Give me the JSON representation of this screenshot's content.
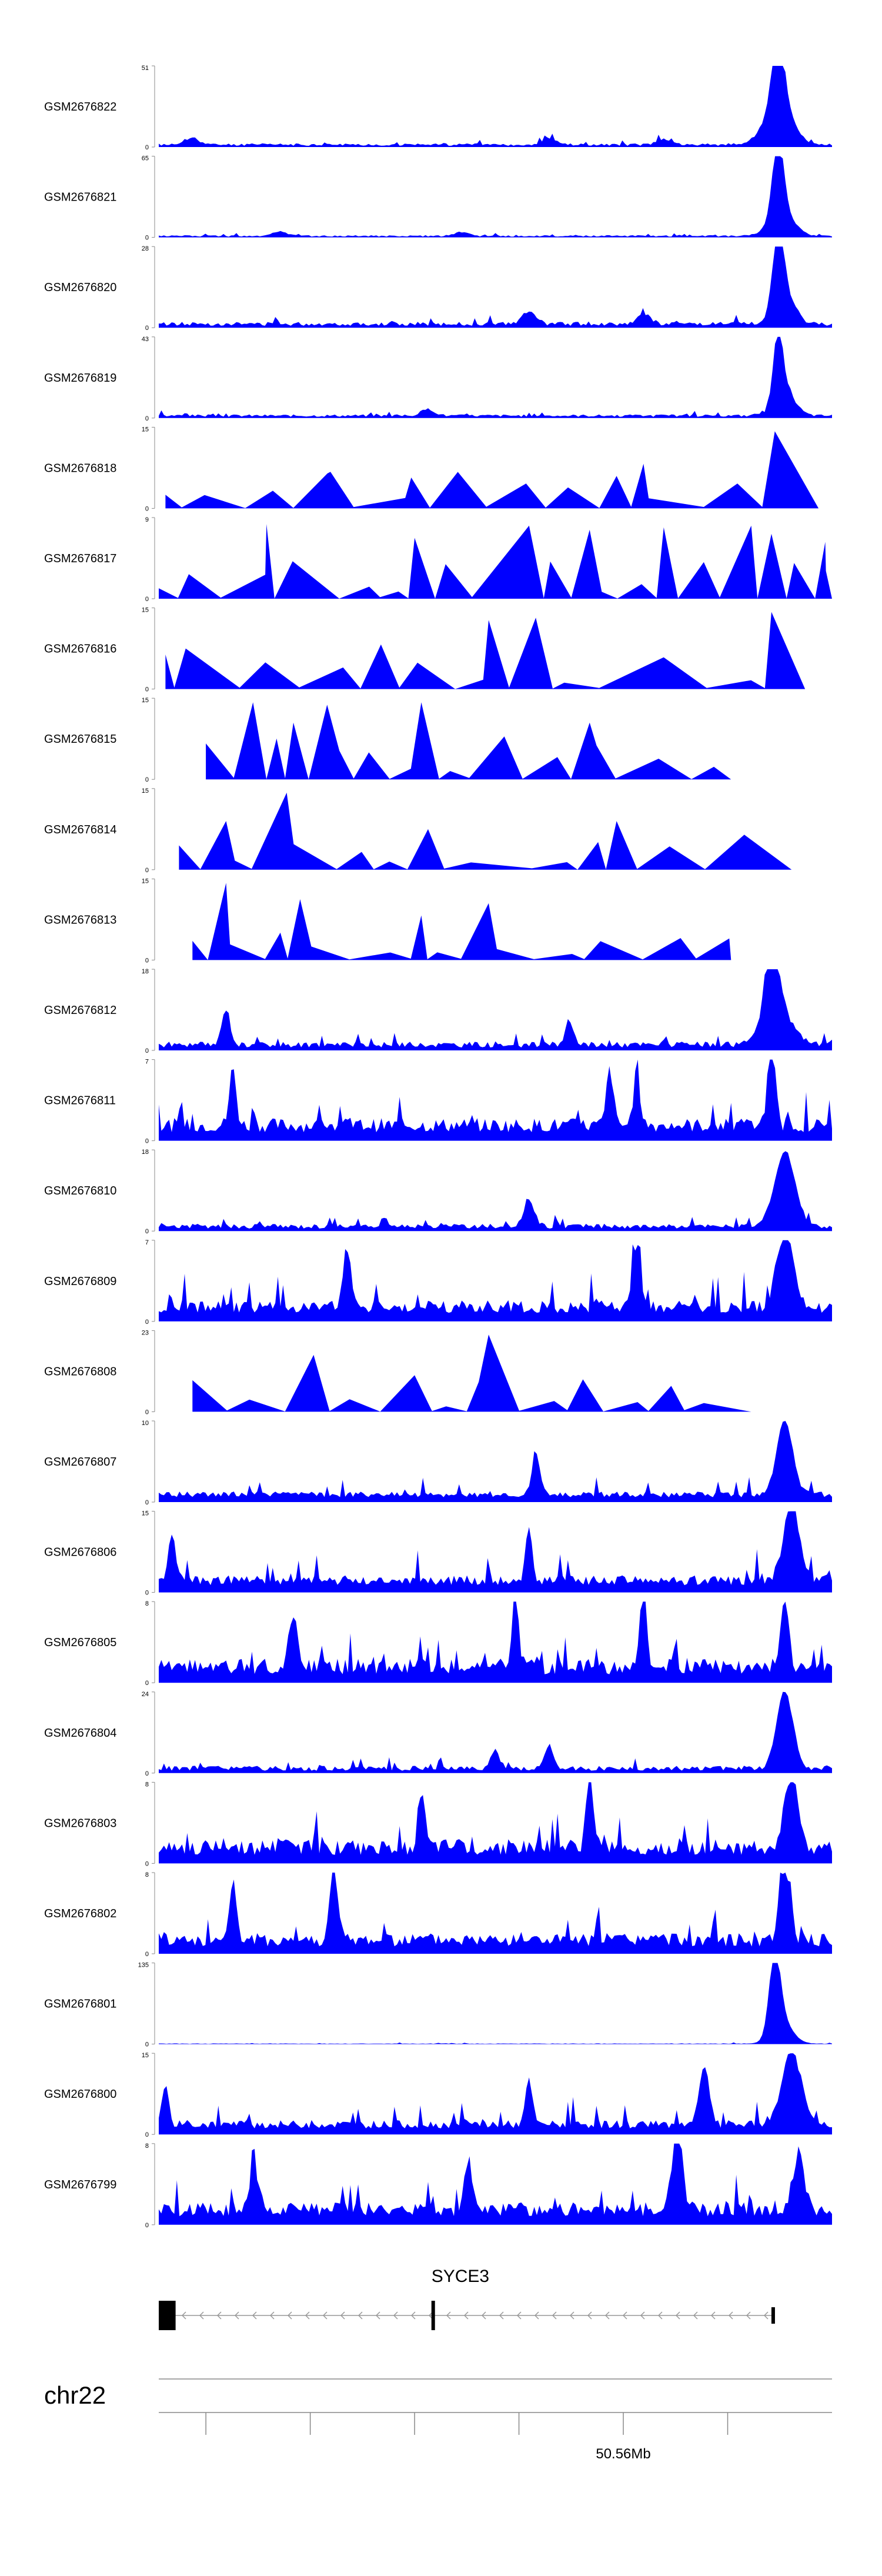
{
  "chart_data": {
    "type": "area",
    "title": "",
    "fill_color": "#0000ff",
    "tracks": [
      {
        "name": "GSM2676822",
        "ymax": "51",
        "ymin": "0",
        "kind": "dense",
        "baseline": 0.05,
        "peaks": [
          [
            0.92,
            0.92,
            0.008
          ],
          [
            0.925,
            0.35,
            0.018
          ],
          [
            0.915,
            0.25,
            0.02
          ],
          [
            0.05,
            0.08,
            0.01
          ],
          [
            0.58,
            0.08,
            0.01
          ],
          [
            0.75,
            0.07,
            0.01
          ]
        ],
        "seed": 11
      },
      {
        "name": "GSM2676821",
        "ymax": "65",
        "ymin": "0",
        "kind": "dense",
        "baseline": 0.03,
        "peaks": [
          [
            0.92,
            0.95,
            0.008
          ],
          [
            0.925,
            0.3,
            0.018
          ],
          [
            0.18,
            0.06,
            0.01
          ],
          [
            0.45,
            0.05,
            0.01
          ]
        ],
        "seed": 12
      },
      {
        "name": "GSM2676820",
        "ymax": "28",
        "ymin": "0",
        "kind": "dense",
        "baseline": 0.08,
        "peaks": [
          [
            0.92,
            0.95,
            0.008
          ],
          [
            0.93,
            0.35,
            0.015
          ],
          [
            0.55,
            0.15,
            0.01
          ],
          [
            0.72,
            0.12,
            0.01
          ]
        ],
        "seed": 13
      },
      {
        "name": "GSM2676819",
        "ymax": "43",
        "ymin": "0",
        "kind": "dense",
        "baseline": 0.05,
        "peaks": [
          [
            0.92,
            0.88,
            0.007
          ],
          [
            0.93,
            0.3,
            0.015
          ],
          [
            0.4,
            0.08,
            0.01
          ]
        ],
        "seed": 14
      },
      {
        "name": "GSM2676818",
        "ymax": "15",
        "ymin": "0",
        "kind": "spiky",
        "start": 0.01,
        "end": 0.98,
        "density": 0.11,
        "amp": 0.45,
        "peaks": [
          [
            0.915,
            0.95
          ],
          [
            0.255,
            0.45
          ],
          [
            0.72,
            0.55
          ],
          [
            0.68,
            0.4
          ],
          [
            0.375,
            0.38
          ]
        ],
        "seed": 21
      },
      {
        "name": "GSM2676817",
        "ymax": "9",
        "ymin": "0",
        "kind": "spiky",
        "start": 0.0,
        "end": 1.0,
        "density": 0.13,
        "amp": 0.55,
        "peaks": [
          [
            0.16,
            0.92
          ],
          [
            0.55,
            0.9
          ],
          [
            0.75,
            0.88
          ],
          [
            0.88,
            0.9
          ],
          [
            0.91,
            0.8
          ],
          [
            0.38,
            0.75
          ],
          [
            0.64,
            0.85
          ],
          [
            0.99,
            0.7
          ]
        ],
        "seed": 22
      },
      {
        "name": "GSM2676816",
        "ymax": "15",
        "ymin": "0",
        "kind": "spiky",
        "start": 0.01,
        "end": 0.96,
        "density": 0.14,
        "amp": 0.45,
        "peaks": [
          [
            0.91,
            0.95
          ],
          [
            0.49,
            0.85
          ],
          [
            0.56,
            0.88
          ],
          [
            0.33,
            0.55
          ],
          [
            0.04,
            0.5
          ]
        ],
        "seed": 23
      },
      {
        "name": "GSM2676815",
        "ymax": "15",
        "ymin": "0",
        "kind": "spiky",
        "start": 0.07,
        "end": 0.85,
        "density": 0.12,
        "amp": 0.55,
        "peaks": [
          [
            0.14,
            0.95
          ],
          [
            0.25,
            0.92
          ],
          [
            0.39,
            0.95
          ],
          [
            0.64,
            0.7
          ],
          [
            0.2,
            0.7
          ]
        ],
        "seed": 24
      },
      {
        "name": "GSM2676814",
        "ymax": "15",
        "ymin": "0",
        "kind": "spiky",
        "start": 0.03,
        "end": 0.94,
        "density": 0.12,
        "amp": 0.45,
        "peaks": [
          [
            0.19,
            0.95
          ],
          [
            0.1,
            0.6
          ],
          [
            0.68,
            0.6
          ],
          [
            0.4,
            0.5
          ]
        ],
        "seed": 25
      },
      {
        "name": "GSM2676813",
        "ymax": "15",
        "ymin": "0",
        "kind": "spiky",
        "start": 0.05,
        "end": 0.85,
        "density": 0.11,
        "amp": 0.45,
        "peaks": [
          [
            0.1,
            0.95
          ],
          [
            0.21,
            0.75
          ],
          [
            0.49,
            0.7
          ],
          [
            0.39,
            0.55
          ]
        ],
        "seed": 26
      },
      {
        "name": "GSM2676812",
        "ymax": "18",
        "ymin": "0",
        "kind": "dense",
        "baseline": 0.12,
        "peaks": [
          [
            0.91,
            0.92,
            0.01
          ],
          [
            0.92,
            0.45,
            0.02
          ],
          [
            0.1,
            0.45,
            0.006
          ],
          [
            0.61,
            0.3,
            0.006
          ]
        ],
        "seed": 31
      },
      {
        "name": "GSM2676811",
        "ymax": "7",
        "ymin": "0",
        "kind": "dense",
        "baseline": 0.35,
        "noise": 0.5,
        "peaks": [
          [
            0.91,
            0.95,
            0.006
          ],
          [
            0.11,
            0.7,
            0.005
          ],
          [
            0.67,
            0.7,
            0.005
          ],
          [
            0.71,
            0.65,
            0.005
          ]
        ],
        "seed": 32
      },
      {
        "name": "GSM2676810",
        "ymax": "18",
        "ymin": "0",
        "kind": "dense",
        "baseline": 0.1,
        "peaks": [
          [
            0.93,
            0.92,
            0.015
          ],
          [
            0.55,
            0.3,
            0.008
          ]
        ],
        "seed": 33
      },
      {
        "name": "GSM2676809",
        "ymax": "7",
        "ymin": "0",
        "kind": "dense",
        "baseline": 0.35,
        "noise": 0.45,
        "peaks": [
          [
            0.93,
            0.95,
            0.012
          ],
          [
            0.71,
            0.8,
            0.006
          ],
          [
            0.28,
            0.75,
            0.006
          ]
        ],
        "seed": 34
      },
      {
        "name": "GSM2676808",
        "ymax": "23",
        "ymin": "0",
        "kind": "spiky",
        "start": 0.05,
        "end": 0.88,
        "density": 0.13,
        "amp": 0.4,
        "peaks": [
          [
            0.49,
            0.95
          ],
          [
            0.23,
            0.7
          ],
          [
            0.38,
            0.45
          ],
          [
            0.63,
            0.4
          ]
        ],
        "seed": 35
      },
      {
        "name": "GSM2676807",
        "ymax": "10",
        "ymin": "0",
        "kind": "dense",
        "baseline": 0.2,
        "noise": 0.35,
        "peaks": [
          [
            0.93,
            0.92,
            0.012
          ],
          [
            0.56,
            0.5,
            0.006
          ]
        ],
        "seed": 36
      },
      {
        "name": "GSM2676806",
        "ymax": "15",
        "ymin": "0",
        "kind": "dense",
        "baseline": 0.3,
        "noise": 0.4,
        "peaks": [
          [
            0.94,
            0.92,
            0.012
          ],
          [
            0.02,
            0.6,
            0.005
          ],
          [
            0.55,
            0.65,
            0.005
          ]
        ],
        "seed": 37
      },
      {
        "name": "GSM2676805",
        "ymax": "8",
        "ymin": "0",
        "kind": "dense",
        "baseline": 0.35,
        "noise": 0.55,
        "peaks": [
          [
            0.72,
            0.95,
            0.005
          ],
          [
            0.53,
            0.9,
            0.005
          ],
          [
            0.93,
            0.8,
            0.006
          ],
          [
            0.2,
            0.7,
            0.006
          ]
        ],
        "seed": 38
      },
      {
        "name": "GSM2676804",
        "ymax": "24",
        "ymin": "0",
        "kind": "dense",
        "baseline": 0.1,
        "peaks": [
          [
            0.93,
            0.95,
            0.012
          ],
          [
            0.5,
            0.25,
            0.006
          ],
          [
            0.58,
            0.3,
            0.006
          ]
        ],
        "seed": 39
      },
      {
        "name": "GSM2676803",
        "ymax": "8",
        "ymin": "0",
        "kind": "dense",
        "baseline": 0.35,
        "noise": 0.55,
        "peaks": [
          [
            0.64,
            0.9,
            0.005
          ],
          [
            0.94,
            0.92,
            0.01
          ],
          [
            0.39,
            0.7,
            0.005
          ]
        ],
        "seed": 40
      },
      {
        "name": "GSM2676802",
        "ymax": "8",
        "ymin": "0",
        "kind": "dense",
        "baseline": 0.3,
        "noise": 0.55,
        "peaks": [
          [
            0.26,
            0.85,
            0.006
          ],
          [
            0.93,
            0.9,
            0.008
          ],
          [
            0.11,
            0.75,
            0.005
          ]
        ],
        "seed": 41
      },
      {
        "name": "GSM2676801",
        "ymax": "135",
        "ymin": "0",
        "kind": "dense",
        "baseline": 0.01,
        "peaks": [
          [
            0.915,
            0.95,
            0.008
          ],
          [
            0.925,
            0.3,
            0.015
          ]
        ],
        "seed": 42
      },
      {
        "name": "GSM2676800",
        "ymax": "15",
        "ymin": "0",
        "kind": "dense",
        "baseline": 0.25,
        "noise": 0.4,
        "peaks": [
          [
            0.94,
            0.92,
            0.014
          ],
          [
            0.81,
            0.7,
            0.008
          ],
          [
            0.55,
            0.55,
            0.005
          ],
          [
            0.01,
            0.45,
            0.005
          ]
        ],
        "seed": 43
      },
      {
        "name": "GSM2676799",
        "ymax": "8",
        "ymin": "0",
        "kind": "dense",
        "baseline": 0.35,
        "noise": 0.5,
        "peaks": [
          [
            0.77,
            0.92,
            0.008
          ],
          [
            0.14,
            0.85,
            0.004
          ],
          [
            0.46,
            0.6,
            0.006
          ],
          [
            0.95,
            0.7,
            0.008
          ]
        ],
        "seed": 44
      }
    ],
    "gene": {
      "name": "SYCE3",
      "strand": "-",
      "span": [
        0.0,
        0.915
      ],
      "exons": [
        [
          0.0,
          0.025,
          "large"
        ],
        [
          0.405,
          0.41,
          "large"
        ],
        [
          0.91,
          0.915,
          "small"
        ]
      ]
    },
    "chromosome": "chr22",
    "ticks": [
      {
        "pos": 0.07,
        "label": ""
      },
      {
        "pos": 0.225,
        "label": ""
      },
      {
        "pos": 0.38,
        "label": ""
      },
      {
        "pos": 0.535,
        "label": ""
      },
      {
        "pos": 0.69,
        "label": "50.56Mb"
      },
      {
        "pos": 0.845,
        "label": ""
      }
    ]
  }
}
